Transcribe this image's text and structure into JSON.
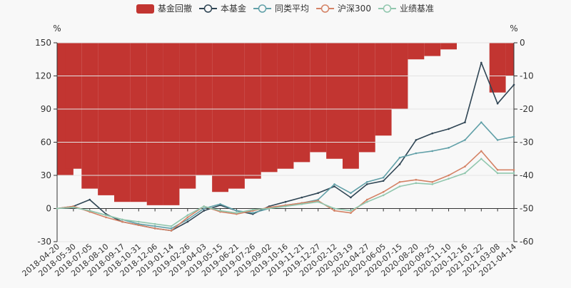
{
  "chart_data": {
    "type": "line",
    "legend": {
      "placement": "top-center",
      "items": [
        {
          "name": "基金回撤",
          "color": "#c23531",
          "shape": "bar"
        },
        {
          "name": "本基金",
          "color": "#2f4554",
          "shape": "line"
        },
        {
          "name": "同类平均",
          "color": "#61a0a8",
          "shape": "line"
        },
        {
          "name": "沪深300",
          "color": "#d48265",
          "shape": "line"
        },
        {
          "name": "业绩基准",
          "color": "#91c7ae",
          "shape": "line"
        }
      ]
    },
    "left_axis": {
      "unit": "%",
      "min": -30,
      "max": 150,
      "ticks": [
        150,
        120,
        90,
        60,
        30,
        0,
        -30
      ]
    },
    "right_axis": {
      "unit": "%",
      "min": -60,
      "max": 0,
      "ticks": [
        0,
        -10,
        -20,
        -30,
        -40,
        -50,
        -60
      ]
    },
    "x_labels": [
      "2018-04-20",
      "2018-05-30",
      "2018-07-05",
      "2018-08-10",
      "2018-09-17",
      "2018-10-31",
      "2018-12-06",
      "2019-01-14",
      "2019-02-26",
      "2019-04-03",
      "2019-05-15",
      "2019-06-21",
      "2019-07-26",
      "2019-09-02",
      "2019-10-16",
      "2019-11-21",
      "2019-12-27",
      "2020-02-12",
      "2020-03-19",
      "2020-04-27",
      "2020-06-05",
      "2020-07-15",
      "2020-08-20",
      "2020-09-25",
      "2020-11-10",
      "2020-12-16",
      "2021-01-22",
      "2021-03-08",
      "2021-04-14"
    ],
    "series": [
      {
        "name": "本基金",
        "axis": "left",
        "color": "#2f4554",
        "values": [
          0,
          2,
          8,
          -5,
          -12,
          -15,
          -18,
          -20,
          -12,
          -2,
          3,
          -2,
          -5,
          2,
          6,
          10,
          14,
          20,
          10,
          22,
          25,
          40,
          62,
          68,
          72,
          78,
          132,
          95,
          112
        ]
      },
      {
        "name": "同类平均",
        "axis": "left",
        "color": "#61a0a8",
        "values": [
          0,
          1,
          -2,
          -6,
          -10,
          -14,
          -16,
          -18,
          -10,
          0,
          4,
          -2,
          -4,
          0,
          3,
          5,
          8,
          22,
          14,
          24,
          28,
          46,
          50,
          52,
          55,
          62,
          78,
          62,
          65
        ]
      },
      {
        "name": "沪深300",
        "axis": "left",
        "color": "#d48265",
        "values": [
          0,
          2,
          -3,
          -8,
          -12,
          -15,
          -18,
          -20,
          -8,
          2,
          -3,
          -5,
          -2,
          1,
          3,
          5,
          7,
          -2,
          -4,
          8,
          15,
          24,
          26,
          24,
          30,
          38,
          52,
          35,
          35
        ]
      },
      {
        "name": "业绩基准",
        "axis": "left",
        "color": "#91c7ae",
        "values": [
          0,
          1,
          -2,
          -6,
          -10,
          -12,
          -14,
          -16,
          -6,
          2,
          -2,
          -4,
          -1,
          0,
          2,
          4,
          6,
          0,
          -2,
          6,
          12,
          20,
          23,
          22,
          27,
          32,
          45,
          32,
          32
        ]
      },
      {
        "name": "基金回撤",
        "axis": "right",
        "color": "#c23531",
        "type": "bar",
        "values": [
          -40,
          -38,
          -44,
          -46,
          -48,
          -48,
          -49,
          -49,
          -44,
          -40,
          -45,
          -44,
          -41,
          -39,
          -38,
          -36,
          -33,
          -35,
          -38,
          -33,
          -28,
          -20,
          -5,
          -4,
          -2,
          0,
          0,
          -15,
          -10
        ]
      }
    ]
  }
}
